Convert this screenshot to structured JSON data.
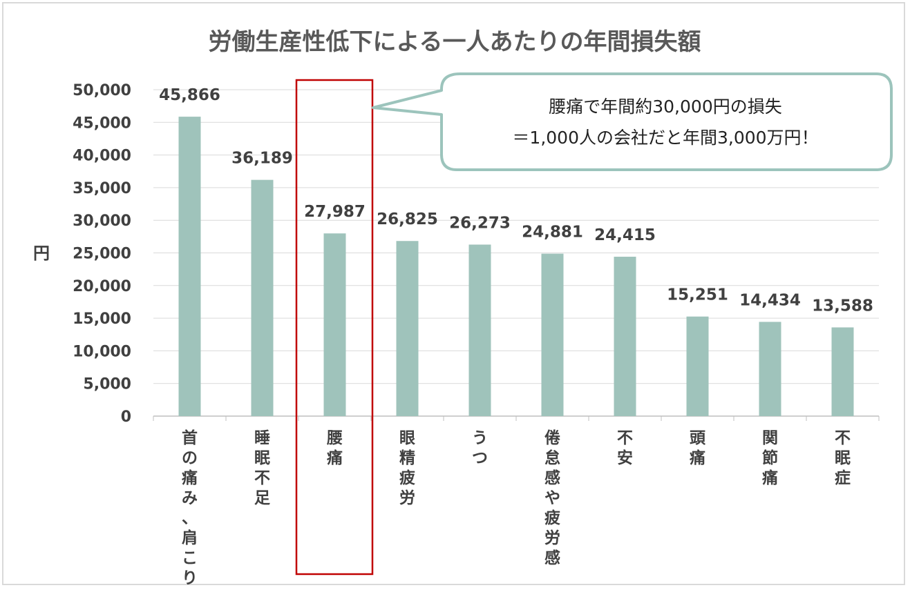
{
  "chart_data": {
    "type": "bar",
    "title": "労働生産性低下による一人あたりの年間損失額",
    "ylabel": "円",
    "xlabel": "",
    "ylim": [
      0,
      50000
    ],
    "yticks": [
      0,
      5000,
      10000,
      15000,
      20000,
      25000,
      30000,
      35000,
      40000,
      45000,
      50000
    ],
    "ytick_labels": [
      "0",
      "5,000",
      "10,000",
      "15,000",
      "20,000",
      "25,000",
      "30,000",
      "35,000",
      "40,000",
      "45,000",
      "50,000"
    ],
    "grid": true,
    "bar_color": "#9fc3bb",
    "categories": [
      "首の痛み、肩こり",
      "睡眠不足",
      "腰痛",
      "眼精疲労",
      "うつ",
      "倦怠感や疲労感",
      "不安",
      "頭痛",
      "関節痛",
      "不眠症"
    ],
    "values": [
      45866,
      36189,
      27987,
      26825,
      26273,
      24881,
      24415,
      15251,
      14434,
      13588
    ],
    "value_labels": [
      "45,866",
      "36,189",
      "27,987",
      "26,825",
      "26,273",
      "24,881",
      "24,415",
      "15,251",
      "14,434",
      "13,588"
    ],
    "highlight": {
      "category": "腰痛",
      "border_color": "#c00000"
    },
    "annotation": {
      "lines": [
        "腰痛で年間約30,000円の損失",
        "＝1,000人の会社だと年間3,000万円！"
      ],
      "border_color": "#9cc4bc"
    }
  }
}
